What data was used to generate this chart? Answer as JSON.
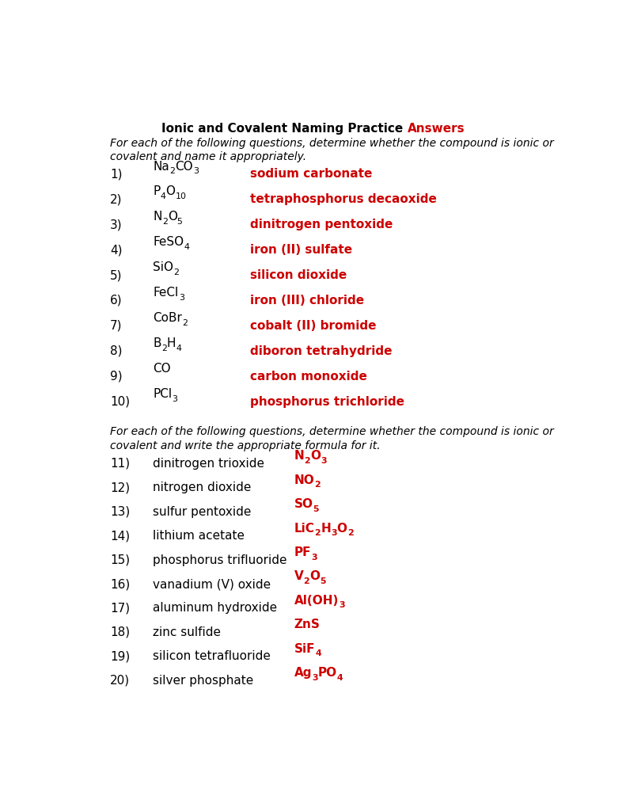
{
  "title_black": "Ionic and Covalent Naming Practice ",
  "title_red": "Answers",
  "subtitle1": "For each of the following questions, determine whether the compound is ionic or",
  "subtitle2": "covalent and name it appropriately.",
  "section2_subtitle1": "For each of the following questions, determine whether the compound is ionic or",
  "section2_subtitle2": "covalent and write the appropriate formula for it.",
  "background_color": "#ffffff",
  "black": "#000000",
  "red": "#cc0000",
  "items_part1": [
    {
      "num": "1)",
      "formula_parts": [
        [
          "Na",
          false
        ],
        [
          "2",
          true
        ],
        [
          "CO",
          false
        ],
        [
          "3",
          true
        ]
      ],
      "answer": "sodium carbonate"
    },
    {
      "num": "2)",
      "formula_parts": [
        [
          "P",
          false
        ],
        [
          "4",
          true
        ],
        [
          "O",
          false
        ],
        [
          "10",
          true
        ]
      ],
      "answer": "tetraphosphorus decaoxide"
    },
    {
      "num": "3)",
      "formula_parts": [
        [
          "N",
          false
        ],
        [
          "2",
          true
        ],
        [
          "O",
          false
        ],
        [
          "5",
          true
        ]
      ],
      "answer": "dinitrogen pentoxide"
    },
    {
      "num": "4)",
      "formula_parts": [
        [
          "FeSO",
          false
        ],
        [
          "4",
          true
        ]
      ],
      "answer": "iron (II) sulfate"
    },
    {
      "num": "5)",
      "formula_parts": [
        [
          "SiO",
          false
        ],
        [
          "2",
          true
        ]
      ],
      "answer": "silicon dioxide"
    },
    {
      "num": "6)",
      "formula_parts": [
        [
          "FeCl",
          false
        ],
        [
          "3",
          true
        ]
      ],
      "answer": "iron (III) chloride"
    },
    {
      "num": "7)",
      "formula_parts": [
        [
          "CoBr",
          false
        ],
        [
          "2",
          true
        ]
      ],
      "answer": "cobalt (II) bromide"
    },
    {
      "num": "8)",
      "formula_parts": [
        [
          "B",
          false
        ],
        [
          "2",
          true
        ],
        [
          "H",
          false
        ],
        [
          "4",
          true
        ]
      ],
      "answer": "diboron tetrahydride"
    },
    {
      "num": "9)",
      "formula_parts": [
        [
          "CO",
          false
        ]
      ],
      "answer": "carbon monoxide"
    },
    {
      "num": "10)",
      "formula_parts": [
        [
          "PCl",
          false
        ],
        [
          "3",
          true
        ]
      ],
      "answer": "phosphorus trichloride"
    }
  ],
  "items_part2": [
    {
      "num": "11)",
      "name": "dinitrogen trioxide",
      "formula_parts": [
        [
          "N",
          false
        ],
        [
          "2",
          true
        ],
        [
          "O",
          false
        ],
        [
          "3",
          true
        ]
      ]
    },
    {
      "num": "12)",
      "name": "nitrogen dioxide",
      "formula_parts": [
        [
          "NO",
          false
        ],
        [
          "2",
          true
        ]
      ]
    },
    {
      "num": "13)",
      "name": "sulfur pentoxide",
      "formula_parts": [
        [
          "SO",
          false
        ],
        [
          "5",
          true
        ]
      ]
    },
    {
      "num": "14)",
      "name": "lithium acetate",
      "formula_parts": [
        [
          "LiC",
          false
        ],
        [
          "2",
          true
        ],
        [
          "H",
          false
        ],
        [
          "3",
          true
        ],
        [
          "O",
          false
        ],
        [
          "2",
          true
        ]
      ]
    },
    {
      "num": "15)",
      "name": "phosphorus trifluoride",
      "formula_parts": [
        [
          "PF",
          false
        ],
        [
          "3",
          true
        ]
      ]
    },
    {
      "num": "16)",
      "name": "vanadium (V) oxide",
      "formula_parts": [
        [
          "V",
          false
        ],
        [
          "2",
          true
        ],
        [
          "O",
          false
        ],
        [
          "5",
          true
        ]
      ]
    },
    {
      "num": "17)",
      "name": "aluminum hydroxide",
      "formula_parts": [
        [
          "Al(OH)",
          false
        ],
        [
          "3",
          true
        ]
      ]
    },
    {
      "num": "18)",
      "name": "zinc sulfide",
      "formula_parts": [
        [
          "ZnS",
          false
        ]
      ]
    },
    {
      "num": "19)",
      "name": "silicon tetrafluoride",
      "formula_parts": [
        [
          "SiF",
          false
        ],
        [
          "4",
          true
        ]
      ]
    },
    {
      "num": "20)",
      "name": "silver phosphate",
      "formula_parts": [
        [
          "Ag",
          false
        ],
        [
          "3",
          true
        ],
        [
          "PO",
          false
        ],
        [
          "4",
          true
        ]
      ]
    }
  ]
}
